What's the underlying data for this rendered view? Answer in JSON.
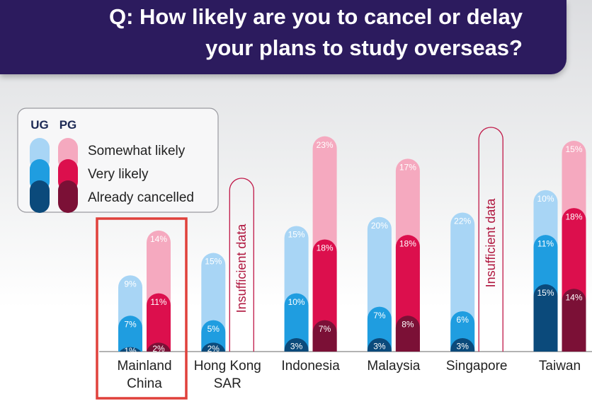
{
  "chart_data": {
    "type": "stacked-bar",
    "title": [
      "Q: How likely are you to cancel or delay",
      "your plans to study overseas?"
    ],
    "stacks": [
      "UG",
      "PG"
    ],
    "categories": [
      "Mainland\nChina",
      "Hong Kong\nSAR",
      "Indonesia",
      "Malaysia",
      "Singapore",
      "Taiwan"
    ],
    "missing_label": "Insufficient data",
    "ylim": [
      0,
      50
    ],
    "highlight_category": "Mainland\nChina",
    "series": [
      {
        "name": "Somewhat likely",
        "colors": {
          "UG": "#a8d5f5",
          "PG": "#f5a9bf"
        },
        "values": {
          "UG": [
            9,
            15,
            15,
            20,
            22,
            10
          ],
          "PG": [
            14,
            null,
            23,
            17,
            null,
            15
          ]
        },
        "value_labels": {
          "UG": [
            "9%",
            "15%",
            "15%",
            "20%",
            "22%",
            "10%"
          ],
          "PG": [
            "14%",
            null,
            "23%",
            "17%",
            null,
            "15%"
          ]
        }
      },
      {
        "name": "Very likely",
        "colors": {
          "UG": "#1f9de0",
          "PG": "#dc0f4d"
        },
        "values": {
          "UG": [
            7,
            5,
            10,
            7,
            6,
            11
          ],
          "PG": [
            11,
            null,
            18,
            18,
            null,
            18
          ]
        },
        "value_labels": {
          "UG": [
            "7%",
            "5%",
            "10%",
            "7%",
            "6%",
            "11%"
          ],
          "PG": [
            "11%",
            null,
            "18%",
            "18%",
            null,
            "18%"
          ]
        }
      },
      {
        "name": "Already cancelled",
        "colors": {
          "UG": "#0b4a7b",
          "PG": "#7b1036"
        },
        "values": {
          "UG": [
            1,
            2,
            3,
            3,
            3,
            15
          ],
          "PG": [
            2,
            null,
            7,
            8,
            null,
            14
          ]
        },
        "value_labels": {
          "UG": [
            "1%",
            "2%",
            "3%",
            "3%",
            "3%",
            "15%"
          ],
          "PG": [
            "2%",
            null,
            "7%",
            "8%",
            null,
            "14%"
          ]
        }
      }
    ]
  }
}
